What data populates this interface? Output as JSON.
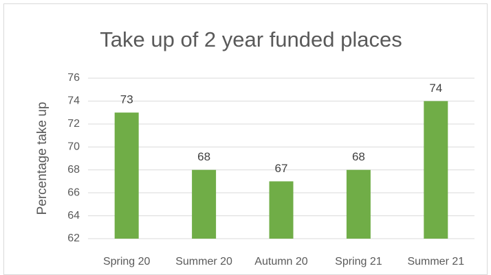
{
  "chart_data": {
    "type": "bar",
    "title": "Take up of 2 year funded places",
    "y_label": "Percentage take up",
    "categories": [
      "Spring 20",
      "Summer 20",
      "Autumn 20",
      "Spring 21",
      "Summer 21"
    ],
    "values": [
      73,
      68,
      67,
      68,
      74
    ],
    "color": "#70ad47",
    "ylim": [
      62,
      76
    ],
    "yticks": [
      62,
      64,
      66,
      68,
      70,
      72,
      74,
      76
    ],
    "grid": true
  }
}
